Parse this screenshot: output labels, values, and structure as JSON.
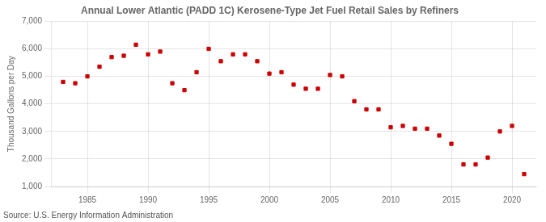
{
  "chart_data": {
    "type": "scatter",
    "title": "Annual Lower Atlantic (PADD 1C) Kerosene-Type Jet Fuel Retail Sales by Refiners",
    "y_label": "Thousand Gallons per Day",
    "source": "Source: U.S. Energy Information Administration",
    "x": [
      1983,
      1984,
      1985,
      1986,
      1987,
      1988,
      1989,
      1990,
      1991,
      1992,
      1993,
      1994,
      1995,
      1996,
      1997,
      1998,
      1999,
      2000,
      2001,
      2002,
      2003,
      2004,
      2005,
      2006,
      2007,
      2008,
      2009,
      2010,
      2011,
      2012,
      2013,
      2014,
      2015,
      2016,
      2017,
      2018,
      2019,
      2020,
      2021
    ],
    "values": [
      4800,
      4750,
      5000,
      5350,
      5700,
      5750,
      6150,
      5800,
      5900,
      4750,
      4500,
      5150,
      6000,
      5550,
      5800,
      5800,
      5550,
      5100,
      5150,
      4700,
      4550,
      4550,
      5050,
      5000,
      4100,
      3800,
      3800,
      3150,
      3200,
      3100,
      3100,
      2850,
      2550,
      1800,
      1800,
      2050,
      3000,
      3200,
      1450
    ],
    "color": "#cc0000",
    "marker": "square",
    "xlim": [
      1982,
      2022
    ],
    "xticks": [
      1985,
      1990,
      1995,
      2000,
      2005,
      2010,
      2015,
      2020
    ],
    "ylim": [
      1000,
      7000
    ],
    "yticks": [
      {
        "value": 1000,
        "label": "1,000"
      },
      {
        "value": 2000,
        "label": "2,000"
      },
      {
        "value": 3000,
        "label": "3,000"
      },
      {
        "value": 4000,
        "label": "4,000"
      },
      {
        "value": 5000,
        "label": "5,000"
      },
      {
        "value": 6000,
        "label": "6,000"
      },
      {
        "value": 7000,
        "label": "7,000"
      }
    ],
    "grid": true
  }
}
